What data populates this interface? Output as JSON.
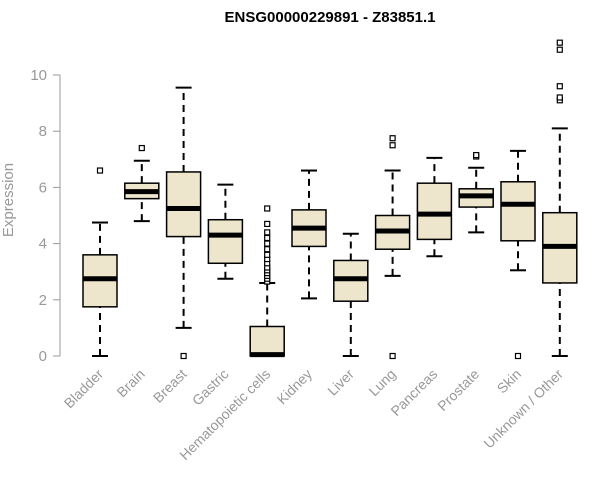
{
  "chart_data": {
    "type": "box",
    "title": "ENSG00000229891 - Z83851.1",
    "xlabel": "",
    "ylabel": "Expression",
    "ylim": [
      0,
      10.5
    ],
    "yticks": [
      0,
      2,
      4,
      6,
      8,
      10
    ],
    "grid": false,
    "colors": {
      "box_fill": "#EDE6CC",
      "stroke": "#000000",
      "axis_text": "#999999"
    },
    "categories": [
      "Bladder",
      "Brain",
      "Breast",
      "Gastric",
      "Hematopoietic cells",
      "Kidney",
      "Liver",
      "Lung",
      "Pancreas",
      "Prostate",
      "Skin",
      "Unknown / Other"
    ],
    "boxes": [
      {
        "category": "Bladder",
        "min": 0.0,
        "q1": 1.75,
        "median": 2.75,
        "q3": 3.6,
        "max": 4.75,
        "outliers": [
          6.6
        ]
      },
      {
        "category": "Brain",
        "min": 4.8,
        "q1": 5.6,
        "median": 5.85,
        "q3": 6.15,
        "max": 6.95,
        "outliers": [
          7.4
        ]
      },
      {
        "category": "Breast",
        "min": 1.0,
        "q1": 4.25,
        "median": 5.25,
        "q3": 6.55,
        "max": 9.55,
        "outliers": [
          0.0
        ]
      },
      {
        "category": "Gastric",
        "min": 2.75,
        "q1": 3.3,
        "median": 4.3,
        "q3": 4.85,
        "max": 6.1,
        "outliers": []
      },
      {
        "category": "Hematopoietic cells",
        "min": 0.0,
        "q1": 0.0,
        "median": 0.05,
        "q3": 1.05,
        "max": 2.6,
        "outliers": [
          2.65,
          2.75,
          2.85,
          2.95,
          3.05,
          3.15,
          3.3,
          3.45,
          3.6,
          3.8,
          4.0,
          4.2,
          4.4,
          4.7,
          5.25
        ]
      },
      {
        "category": "Kidney",
        "min": 2.05,
        "q1": 3.9,
        "median": 4.55,
        "q3": 5.2,
        "max": 6.6,
        "outliers": []
      },
      {
        "category": "Liver",
        "min": 0.0,
        "q1": 1.95,
        "median": 2.75,
        "q3": 3.4,
        "max": 4.35,
        "outliers": []
      },
      {
        "category": "Lung",
        "min": 2.85,
        "q1": 3.8,
        "median": 4.45,
        "q3": 5.0,
        "max": 6.6,
        "outliers": [
          0.0,
          7.5,
          7.75
        ]
      },
      {
        "category": "Pancreas",
        "min": 3.55,
        "q1": 4.15,
        "median": 5.05,
        "q3": 6.15,
        "max": 7.05,
        "outliers": []
      },
      {
        "category": "Prostate",
        "min": 4.4,
        "q1": 5.3,
        "median": 5.7,
        "q3": 5.95,
        "max": 6.7,
        "outliers": [
          7.1,
          7.15
        ]
      },
      {
        "category": "Skin",
        "min": 3.05,
        "q1": 4.1,
        "median": 5.4,
        "q3": 6.2,
        "max": 7.3,
        "outliers": [
          0.0
        ]
      },
      {
        "category": "Unknown / Other",
        "min": 0.0,
        "q1": 2.6,
        "median": 3.9,
        "q3": 5.1,
        "max": 8.1,
        "outliers": [
          9.1,
          9.2,
          9.6,
          10.9,
          11.15
        ]
      }
    ]
  }
}
